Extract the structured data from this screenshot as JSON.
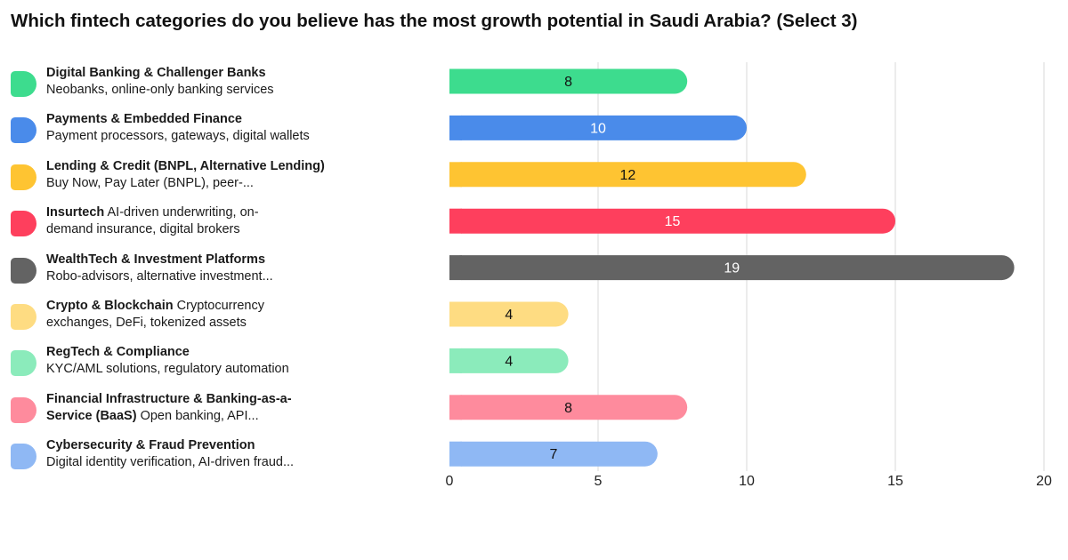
{
  "chart_data": {
    "type": "bar",
    "orientation": "horizontal",
    "title": "Which fintech categories do you believe has the most growth potential in Saudi Arabia? (Select 3)",
    "xlabel": "",
    "ylabel": "",
    "xlim": [
      0,
      20
    ],
    "x_ticks": [
      0,
      5,
      10,
      15,
      20
    ],
    "grid": "vertical",
    "legend_placement": "left",
    "categories": [
      {
        "name": "Digital Banking & Challenger Banks",
        "desc": "Neobanks, online-only banking services",
        "line1": "",
        "line2": "",
        "value": 8,
        "color": "#3DDC8E",
        "label_color": "#111111"
      },
      {
        "name": "Payments & Embedded Finance",
        "desc": "Payment processors, gateways, digital wallets",
        "line1": "",
        "line2": "",
        "value": 10,
        "color": "#4A8BEA",
        "label_color": "#ffffff"
      },
      {
        "name": "Lending & Credit (BNPL, Alternative Lending)",
        "desc": "Buy Now, Pay Later (BNPL), peer-...",
        "line1": "",
        "line2": "",
        "value": 12,
        "color": "#FEC432",
        "label_color": "#111111"
      },
      {
        "name": "Insurtech",
        "desc": "",
        "line1": "AI-driven underwriting, on-",
        "line2": "demand insurance, digital brokers",
        "value": 15,
        "color": "#FE3F5D",
        "label_color": "#ffffff"
      },
      {
        "name": "WealthTech & Investment Platforms",
        "desc": "Robo-advisors, alternative investment...",
        "line1": "",
        "line2": "",
        "value": 19,
        "color": "#636363",
        "label_color": "#ffffff"
      },
      {
        "name": "Crypto & Blockchain",
        "desc": "",
        "line1": "Cryptocurrency",
        "line2": "exchanges, DeFi, tokenized assets",
        "value": 4,
        "color": "#FEDC82",
        "label_color": "#111111"
      },
      {
        "name": "RegTech & Compliance",
        "desc": "KYC/AML solutions, regulatory automation",
        "line1": "",
        "line2": "",
        "value": 4,
        "color": "#8BEBBB",
        "label_color": "#111111"
      },
      {
        "name": "Financial Infrastructure & Banking-as-a-",
        "desc": "",
        "line1": "",
        "line2": "Service (BaaS) Open banking, API...",
        "value": 8,
        "color": "#FE8B9D",
        "label_color": "#111111"
      },
      {
        "name": "Cybersecurity & Fraud Prevention",
        "desc": "Digital identity verification, AI-driven fraud...",
        "line1": "",
        "line2": "",
        "value": 7,
        "color": "#8FB8F4",
        "label_color": "#111111"
      }
    ]
  }
}
